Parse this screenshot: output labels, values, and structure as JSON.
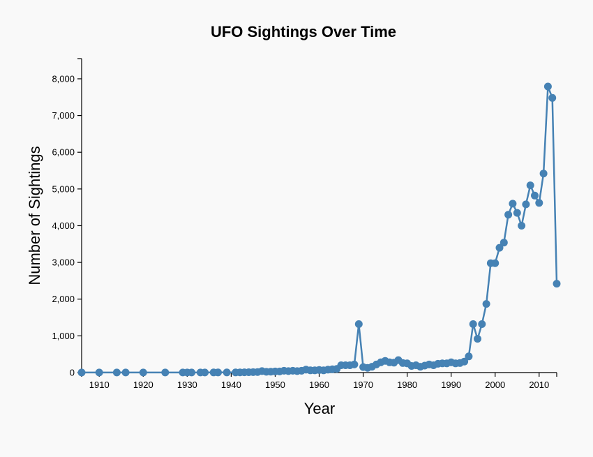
{
  "chart_data": {
    "type": "line",
    "title": "UFO Sightings Over Time",
    "xlabel": "Year",
    "ylabel": "Number of Sightings",
    "xlim": [
      1906,
      2014
    ],
    "ylim": [
      0,
      8550
    ],
    "x_ticks": [
      "1910",
      "1920",
      "1930",
      "1940",
      "1950",
      "1960",
      "1970",
      "1980",
      "1990",
      "2000",
      "2010"
    ],
    "y_ticks": [
      "0",
      "1,000",
      "2,000",
      "3,000",
      "4,000",
      "5,000",
      "6,000",
      "7,000",
      "8,000"
    ],
    "grid": false,
    "color": "#4682b4",
    "series": [
      {
        "x": [
          1906,
          1910,
          1914,
          1916,
          1920,
          1925,
          1929,
          1930,
          1931,
          1933,
          1934,
          1936,
          1937,
          1939,
          1941,
          1942,
          1943,
          1944,
          1945,
          1946,
          1947,
          1948,
          1949,
          1950,
          1951,
          1952,
          1953,
          1954,
          1955,
          1956,
          1957,
          1958,
          1959,
          1960,
          1961,
          1962,
          1963,
          1964,
          1965,
          1966,
          1967,
          1968,
          1969,
          1970,
          1971,
          1972,
          1973,
          1974,
          1975,
          1976,
          1977,
          1978,
          1979,
          1980,
          1981,
          1982,
          1983,
          1984,
          1985,
          1986,
          1987,
          1988,
          1989,
          1990,
          1991,
          1992,
          1993,
          1994,
          1995,
          1996,
          1997,
          1998,
          1999,
          2000,
          2001,
          2002,
          2003,
          2004,
          2005,
          2006,
          2007,
          2008,
          2009,
          2010,
          2011,
          2012,
          2013,
          2014
        ],
        "y": [
          1,
          1,
          1,
          1,
          1,
          1,
          2,
          2,
          2,
          2,
          2,
          3,
          3,
          3,
          4,
          5,
          8,
          10,
          12,
          15,
          40,
          20,
          25,
          30,
          30,
          50,
          40,
          50,
          40,
          50,
          80,
          60,
          60,
          70,
          60,
          80,
          90,
          100,
          200,
          200,
          200,
          220,
          1320,
          150,
          130,
          160,
          220,
          280,
          320,
          280,
          270,
          340,
          260,
          250,
          180,
          200,
          160,
          190,
          220,
          200,
          240,
          250,
          250,
          280,
          250,
          260,
          300,
          440,
          1320,
          920,
          1320,
          1870,
          2980,
          2980,
          3400,
          3540,
          4300,
          4600,
          4350,
          4000,
          4580,
          5100,
          4820,
          4620,
          5420,
          7790,
          7480,
          2420
        ]
      }
    ]
  }
}
